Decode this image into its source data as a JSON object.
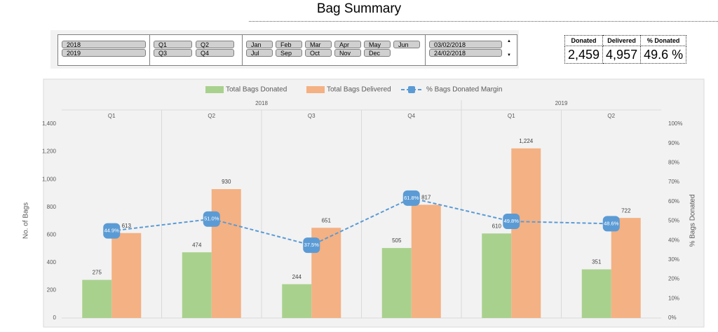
{
  "header": {
    "title": "Bag Summary"
  },
  "slicers": {
    "years": [
      "2018",
      "2019"
    ],
    "quarters": [
      "Q1",
      "Q2",
      "Q3",
      "Q4"
    ],
    "months": [
      "Jan",
      "Feb",
      "Mar",
      "Apr",
      "May",
      "Jun",
      "Jul",
      "Sep",
      "Oct",
      "Nov",
      "Dec"
    ],
    "dates": [
      "03/02/2018",
      "24/02/2018"
    ]
  },
  "kpi": {
    "headers": [
      "Donated",
      "Delivered",
      "% Donated"
    ],
    "values": [
      "2,459",
      "4,957",
      "49.6 %"
    ]
  },
  "chart_data": {
    "type": "bar",
    "legend": "top",
    "category_groups": [
      {
        "name": "2018",
        "categories": [
          "Q1",
          "Q2",
          "Q3",
          "Q4"
        ]
      },
      {
        "name": "2019",
        "categories": [
          "Q1",
          "Q2"
        ]
      }
    ],
    "series": [
      {
        "name": "Total Bags Donated",
        "type": "bar",
        "color": "#a9d18e",
        "values": [
          275,
          474,
          244,
          505,
          610,
          351
        ]
      },
      {
        "name": "Total Bags Delivered",
        "type": "bar",
        "color": "#f4b183",
        "values": [
          613,
          930,
          651,
          817,
          1224,
          722
        ],
        "value_labels": [
          "613",
          "930",
          "651",
          "817",
          "1,224",
          "722"
        ]
      },
      {
        "name": "% Bags Donated Margin",
        "type": "line",
        "axis": "y2",
        "color": "#5b9bd5",
        "values": [
          44.9,
          51.0,
          37.5,
          61.8,
          49.8,
          48.6
        ],
        "value_labels": [
          "44.9%",
          "51.0%",
          "37.5%",
          "61.8%",
          "49.8%",
          "48.6%"
        ]
      }
    ],
    "ylabel": "No. of Bags",
    "y2label": "% Bags Donated",
    "ylim": [
      0,
      1400
    ],
    "yticks": [
      0,
      200,
      400,
      600,
      800,
      {
        "value": 1000,
        "label": "1,000"
      },
      {
        "value": 1200,
        "label": "1,200"
      },
      {
        "value": 1400,
        "label": "1,400"
      }
    ],
    "y2lim": [
      0,
      100
    ],
    "y2ticks": [
      {
        "value": 0,
        "label": "0%"
      },
      {
        "value": 10,
        "label": "10%"
      },
      {
        "value": 20,
        "label": "20%"
      },
      {
        "value": 30,
        "label": "30%"
      },
      {
        "value": 40,
        "label": "40%"
      },
      {
        "value": 50,
        "label": "50%"
      },
      {
        "value": 60,
        "label": "60%"
      },
      {
        "value": 70,
        "label": "70%"
      },
      {
        "value": 80,
        "label": "80%"
      },
      {
        "value": 90,
        "label": "90%"
      },
      {
        "value": 100,
        "label": "100%"
      }
    ]
  }
}
